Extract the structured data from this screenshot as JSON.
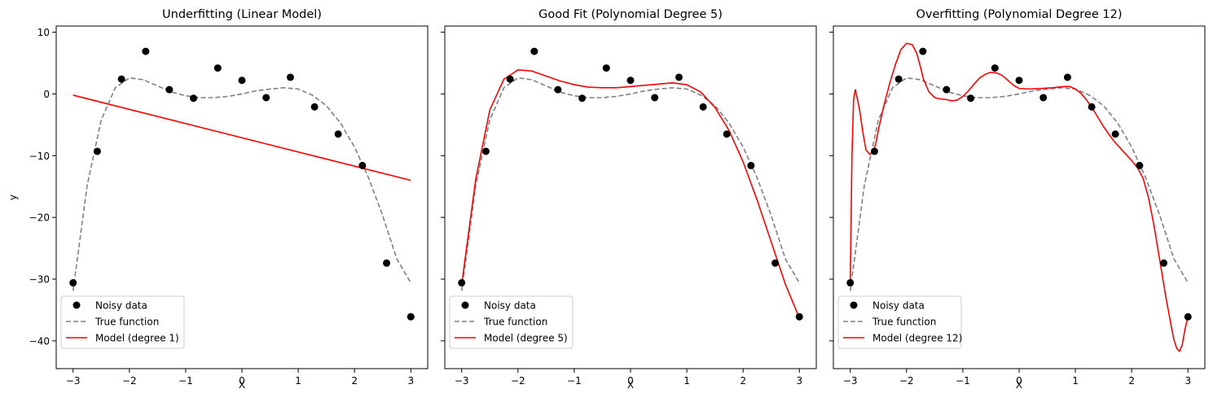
{
  "chart_data": [
    {
      "type": "line",
      "title": "Underfitting (Linear Model)",
      "xlabel": "X",
      "ylabel": "y",
      "xlim": [
        -3.3,
        3.3
      ],
      "ylim": [
        -44.5,
        11
      ],
      "xticks": [
        -3,
        -2,
        -1,
        0,
        1,
        2,
        3
      ],
      "xtick_labels": [
        "−3",
        "−2",
        "−1",
        "0",
        "1",
        "2",
        "3"
      ],
      "yticks": [
        10,
        0,
        -10,
        -20,
        -30,
        -40
      ],
      "ytick_labels": [
        "10",
        "0",
        "−10",
        "−20",
        "−30",
        "−40"
      ],
      "legend_position": "lower-left",
      "legend": [
        "Noisy data",
        "True function",
        "Model (degree 1)"
      ],
      "scatter": {
        "name": "Noisy data",
        "color": "#000000",
        "x": [
          -3.0,
          -2.57,
          -2.14,
          -1.71,
          -1.29,
          -0.86,
          -0.43,
          0.0,
          0.43,
          0.86,
          1.29,
          1.71,
          2.14,
          2.57,
          3.0
        ],
        "y": [
          -30.6,
          -9.3,
          2.4,
          6.9,
          0.7,
          -0.7,
          4.2,
          2.2,
          -0.6,
          2.7,
          -2.1,
          -6.5,
          -11.6,
          -27.4,
          -36.1
        ]
      },
      "true_function": {
        "name": "True function",
        "color": "#808080",
        "x": [
          -3.0,
          -2.75,
          -2.5,
          -2.25,
          -2.0,
          -1.75,
          -1.5,
          -1.25,
          -1.0,
          -0.75,
          -0.5,
          -0.25,
          0.0,
          0.25,
          0.5,
          0.75,
          1.0,
          1.25,
          1.5,
          1.75,
          2.0,
          2.25,
          2.5,
          2.75,
          3.0
        ],
        "y": [
          -31.9,
          -14.8,
          -4.2,
          1.0,
          2.6,
          2.3,
          1.3,
          0.3,
          -0.3,
          -0.6,
          -0.6,
          -0.4,
          0.0,
          0.5,
          0.8,
          1.0,
          0.8,
          -0.2,
          -1.9,
          -4.7,
          -8.6,
          -13.6,
          -19.7,
          -26.7,
          -30.6
        ]
      },
      "model": {
        "name": "Model (degree 1)",
        "color": "#ff0000",
        "x": [
          -3.0,
          3.0
        ],
        "y": [
          -0.2,
          -14.0
        ]
      }
    },
    {
      "type": "line",
      "title": "Good Fit (Polynomial Degree 5)",
      "xlabel": "X",
      "ylabel": "",
      "xlim": [
        -3.3,
        3.3
      ],
      "ylim": [
        -44.5,
        11
      ],
      "xticks": [
        -3,
        -2,
        -1,
        0,
        1,
        2,
        3
      ],
      "xtick_labels": [
        "−3",
        "−2",
        "−1",
        "0",
        "1",
        "2",
        "3"
      ],
      "yticks": [
        10,
        0,
        -10,
        -20,
        -30,
        -40
      ],
      "ytick_labels": [
        "",
        "",
        "",
        "",
        "",
        ""
      ],
      "legend_position": "lower-left",
      "legend": [
        "Noisy data",
        "True function",
        "Model (degree 5)"
      ],
      "scatter": {
        "name": "Noisy data",
        "color": "#000000",
        "x": [
          -3.0,
          -2.57,
          -2.14,
          -1.71,
          -1.29,
          -0.86,
          -0.43,
          0.0,
          0.43,
          0.86,
          1.29,
          1.71,
          2.14,
          2.57,
          3.0
        ],
        "y": [
          -30.6,
          -9.3,
          2.4,
          6.9,
          0.7,
          -0.7,
          4.2,
          2.2,
          -0.6,
          2.7,
          -2.1,
          -6.5,
          -11.6,
          -27.4,
          -36.1
        ]
      },
      "true_function": {
        "name": "True function",
        "color": "#808080",
        "x": [
          -3.0,
          -2.75,
          -2.5,
          -2.25,
          -2.0,
          -1.75,
          -1.5,
          -1.25,
          -1.0,
          -0.75,
          -0.5,
          -0.25,
          0.0,
          0.25,
          0.5,
          0.75,
          1.0,
          1.25,
          1.5,
          1.75,
          2.0,
          2.25,
          2.5,
          2.75,
          3.0
        ],
        "y": [
          -31.9,
          -14.8,
          -4.2,
          1.0,
          2.6,
          2.3,
          1.3,
          0.3,
          -0.3,
          -0.6,
          -0.6,
          -0.4,
          0.0,
          0.5,
          0.8,
          1.0,
          0.8,
          -0.2,
          -1.9,
          -4.7,
          -8.6,
          -13.6,
          -19.7,
          -26.7,
          -30.6
        ]
      },
      "model": {
        "name": "Model (degree 5)",
        "color": "#ff0000",
        "x": [
          -3.0,
          -2.75,
          -2.5,
          -2.25,
          -2.0,
          -1.75,
          -1.5,
          -1.25,
          -1.0,
          -0.75,
          -0.5,
          -0.25,
          0.0,
          0.25,
          0.5,
          0.75,
          1.0,
          1.25,
          1.5,
          1.75,
          2.0,
          2.25,
          2.5,
          2.75,
          3.0
        ],
        "y": [
          -30.9,
          -13.8,
          -2.6,
          2.4,
          3.9,
          3.7,
          2.9,
          2.1,
          1.5,
          1.1,
          1.0,
          1.0,
          1.2,
          1.4,
          1.6,
          1.8,
          1.5,
          0.3,
          -2.2,
          -5.9,
          -11.0,
          -17.2,
          -24.0,
          -30.8,
          -36.3
        ]
      }
    },
    {
      "type": "line",
      "title": "Overfitting (Polynomial Degree 12)",
      "xlabel": "X",
      "ylabel": "",
      "xlim": [
        -3.3,
        3.3
      ],
      "ylim": [
        -44.5,
        11
      ],
      "xticks": [
        -3,
        -2,
        -1,
        0,
        1,
        2,
        3
      ],
      "xtick_labels": [
        "−3",
        "−2",
        "−1",
        "0",
        "1",
        "2",
        "3"
      ],
      "yticks": [
        10,
        0,
        -10,
        -20,
        -30,
        -40
      ],
      "ytick_labels": [
        "",
        "",
        "",
        "",
        "",
        ""
      ],
      "legend_position": "lower-left",
      "legend": [
        "Noisy data",
        "True function",
        "Model (degree 12)"
      ],
      "scatter": {
        "name": "Noisy data",
        "color": "#000000",
        "x": [
          -3.0,
          -2.57,
          -2.14,
          -1.71,
          -1.29,
          -0.86,
          -0.43,
          0.0,
          0.43,
          0.86,
          1.29,
          1.71,
          2.14,
          2.57,
          3.0
        ],
        "y": [
          -30.6,
          -9.3,
          2.4,
          6.9,
          0.7,
          -0.7,
          4.2,
          2.2,
          -0.6,
          2.7,
          -2.1,
          -6.5,
          -11.6,
          -27.4,
          -36.1
        ]
      },
      "true_function": {
        "name": "True function",
        "color": "#808080",
        "x": [
          -3.0,
          -2.75,
          -2.5,
          -2.25,
          -2.0,
          -1.75,
          -1.5,
          -1.25,
          -1.0,
          -0.75,
          -0.5,
          -0.25,
          0.0,
          0.25,
          0.5,
          0.75,
          1.0,
          1.25,
          1.5,
          1.75,
          2.0,
          2.25,
          2.5,
          2.75,
          3.0
        ],
        "y": [
          -31.9,
          -14.8,
          -4.2,
          1.0,
          2.6,
          2.3,
          1.3,
          0.3,
          -0.3,
          -0.6,
          -0.6,
          -0.4,
          0.0,
          0.5,
          0.8,
          1.0,
          0.8,
          -0.2,
          -1.9,
          -4.7,
          -8.6,
          -13.6,
          -19.7,
          -26.7,
          -30.6
        ]
      },
      "model": {
        "name": "Model (degree 12)",
        "color": "#ff0000",
        "x": [
          -3.0,
          -2.97,
          -2.94,
          -2.91,
          -2.88,
          -2.83,
          -2.78,
          -2.72,
          -2.65,
          -2.6,
          -2.55,
          -2.5,
          -2.4,
          -2.3,
          -2.2,
          -2.1,
          -2.0,
          -1.9,
          -1.82,
          -1.75,
          -1.7,
          -1.6,
          -1.5,
          -1.4,
          -1.3,
          -1.2,
          -1.1,
          -1.0,
          -0.9,
          -0.8,
          -0.7,
          -0.6,
          -0.5,
          -0.4,
          -0.3,
          -0.2,
          -0.1,
          0.0,
          0.2,
          0.4,
          0.6,
          0.8,
          0.9,
          1.0,
          1.1,
          1.2,
          1.3,
          1.4,
          1.5,
          1.6,
          1.7,
          1.8,
          1.9,
          2.0,
          2.1,
          2.2,
          2.3,
          2.4,
          2.5,
          2.6,
          2.7,
          2.75,
          2.8,
          2.85,
          2.9,
          2.95,
          3.0
        ],
        "y": [
          -30.6,
          -10.0,
          -0.8,
          0.7,
          -0.5,
          -2.8,
          -6.0,
          -9.1,
          -9.8,
          -9.4,
          -8.2,
          -5.8,
          -1.8,
          1.7,
          4.7,
          7.2,
          8.2,
          8.0,
          6.6,
          4.3,
          2.4,
          0.3,
          -0.6,
          -0.8,
          -0.9,
          -1.1,
          -1.0,
          -0.4,
          0.5,
          1.6,
          2.6,
          3.2,
          3.5,
          3.4,
          3.0,
          2.2,
          1.4,
          0.9,
          0.8,
          0.9,
          1.0,
          1.2,
          1.2,
          0.8,
          0.1,
          -1.0,
          -2.3,
          -3.8,
          -5.3,
          -6.6,
          -7.8,
          -8.8,
          -9.8,
          -10.8,
          -11.9,
          -13.6,
          -16.8,
          -21.5,
          -27.0,
          -32.5,
          -37.5,
          -39.8,
          -41.2,
          -41.7,
          -40.6,
          -38.0,
          -36.1
        ]
      }
    }
  ]
}
